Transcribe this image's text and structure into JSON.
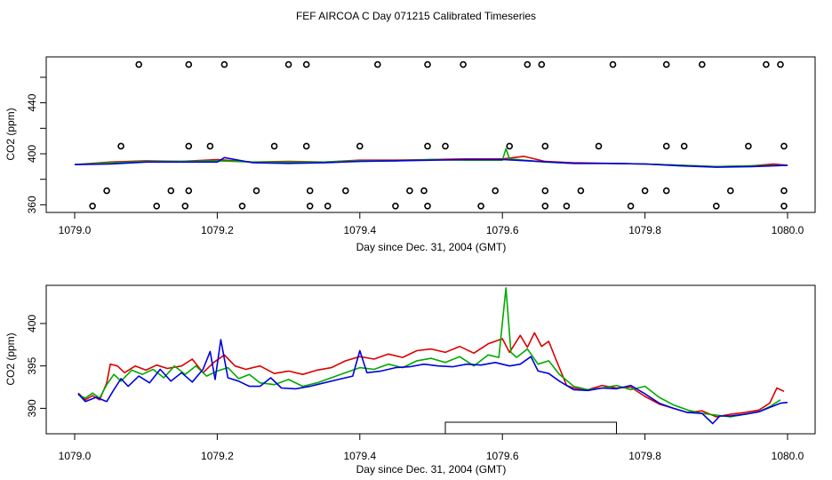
{
  "title": "FEF AIRCOA C  Day 071215  Calibrated Timeseries",
  "chart_data": [
    {
      "type": "line",
      "xlabel": "Day since Dec. 31, 2004 (GMT)",
      "ylabel": "CO2 (ppm)",
      "xlim": [
        1079.0,
        1080.0
      ],
      "ylim": [
        354,
        476
      ],
      "xticks": [
        1079.0,
        1079.2,
        1079.4,
        1079.6,
        1079.8,
        1080.0
      ],
      "xtick_labels": [
        "1079.0",
        "1079.2",
        "1079.4",
        "1079.6",
        "1079.8",
        "1080.0"
      ],
      "yticks": [
        360,
        380,
        400,
        420,
        440,
        460
      ],
      "ytick_labels": [
        "360",
        "",
        "400",
        "",
        "440",
        ""
      ],
      "series": [
        {
          "name": "red",
          "color": "#dd0000",
          "x": [
            1079.0,
            1079.05,
            1079.1,
            1079.15,
            1079.2,
            1079.25,
            1079.3,
            1079.35,
            1079.4,
            1079.45,
            1079.5,
            1079.55,
            1079.6,
            1079.63,
            1079.66,
            1079.7,
            1079.75,
            1079.8,
            1079.85,
            1079.9,
            1079.95,
            1079.98,
            1080.0
          ],
          "y": [
            391.5,
            393.5,
            394.5,
            394,
            395.5,
            393.5,
            394,
            393.5,
            395,
            395,
            395.5,
            396,
            396,
            398,
            394,
            393,
            392.5,
            392,
            391,
            390,
            390.5,
            392,
            391
          ]
        },
        {
          "name": "green",
          "color": "#00aa00",
          "x": [
            1079.0,
            1079.05,
            1079.1,
            1079.15,
            1079.2,
            1079.25,
            1079.3,
            1079.35,
            1079.4,
            1079.45,
            1079.5,
            1079.55,
            1079.6,
            1079.605,
            1079.61,
            1079.63,
            1079.66,
            1079.7,
            1079.75,
            1079.8,
            1079.85,
            1079.9,
            1079.95,
            1080.0
          ],
          "y": [
            391.5,
            393,
            394,
            394,
            394.5,
            393.5,
            393.5,
            393.5,
            394.5,
            394.5,
            395.5,
            395,
            395,
            404,
            396,
            395,
            393.5,
            392.5,
            392.5,
            392,
            391,
            390,
            390.5,
            391
          ]
        },
        {
          "name": "blue",
          "color": "#0000dd",
          "x": [
            1079.0,
            1079.05,
            1079.1,
            1079.15,
            1079.2,
            1079.21,
            1079.25,
            1079.3,
            1079.35,
            1079.4,
            1079.45,
            1079.5,
            1079.55,
            1079.6,
            1079.65,
            1079.7,
            1079.75,
            1079.8,
            1079.85,
            1079.9,
            1079.95,
            1080.0
          ],
          "y": [
            391.5,
            392,
            393.5,
            393.5,
            393.5,
            397,
            393,
            392.5,
            393,
            394,
            394.5,
            395,
            395.5,
            395.5,
            394,
            392.5,
            392.5,
            392,
            390.5,
            389.5,
            390,
            391
          ]
        }
      ],
      "flag_markers": {
        "style": "open-circle",
        "rows": [
          {
            "y": 470,
            "x": [
              1079.09,
              1079.16,
              1079.21,
              1079.3,
              1079.325,
              1079.425,
              1079.495,
              1079.545,
              1079.635,
              1079.655,
              1079.755,
              1079.83,
              1079.88,
              1079.97,
              1079.99
            ]
          },
          {
            "y": 406,
            "x": [
              1079.065,
              1079.16,
              1079.19,
              1079.28,
              1079.325,
              1079.4,
              1079.495,
              1079.52,
              1079.61,
              1079.66,
              1079.735,
              1079.83,
              1079.855,
              1079.945,
              1079.995
            ]
          },
          {
            "y": 371,
            "x": [
              1079.045,
              1079.135,
              1079.16,
              1079.255,
              1079.33,
              1079.38,
              1079.47,
              1079.49,
              1079.59,
              1079.66,
              1079.71,
              1079.8,
              1079.83,
              1079.92,
              1079.995
            ]
          },
          {
            "y": 359,
            "x": [
              1079.025,
              1079.115,
              1079.155,
              1079.235,
              1079.33,
              1079.355,
              1079.45,
              1079.495,
              1079.57,
              1079.66,
              1079.69,
              1079.78,
              1079.9,
              1079.995
            ]
          }
        ]
      }
    },
    {
      "type": "line",
      "xlabel": "Day since Dec. 31, 2004 (GMT)",
      "ylabel": "CO2 (ppm)",
      "xlim": [
        1079.0,
        1080.0
      ],
      "ylim": [
        387.0,
        404.5
      ],
      "xticks": [
        1079.0,
        1079.2,
        1079.4,
        1079.6,
        1079.8,
        1080.0
      ],
      "xtick_labels": [
        "1079.0",
        "1079.2",
        "1079.4",
        "1079.6",
        "1079.8",
        "1080.0"
      ],
      "yticks": [
        390,
        395,
        400
      ],
      "ytick_labels": [
        "390",
        "395",
        "400"
      ],
      "legend_box": {
        "x_range": [
          1079.52,
          1079.76
        ]
      },
      "series": [
        {
          "name": "red",
          "color": "#dd0000",
          "x": [
            1079.005,
            1079.015,
            1079.025,
            1079.035,
            1079.045,
            1079.05,
            1079.06,
            1079.07,
            1079.085,
            1079.1,
            1079.115,
            1079.13,
            1079.15,
            1079.165,
            1079.18,
            1079.195,
            1079.21,
            1079.225,
            1079.24,
            1079.26,
            1079.28,
            1079.3,
            1079.32,
            1079.34,
            1079.36,
            1079.38,
            1079.4,
            1079.42,
            1079.44,
            1079.46,
            1079.48,
            1079.5,
            1079.52,
            1079.54,
            1079.56,
            1079.58,
            1079.6,
            1079.61,
            1079.625,
            1079.635,
            1079.645,
            1079.655,
            1079.665,
            1079.675,
            1079.69,
            1079.7,
            1079.72,
            1079.74,
            1079.76,
            1079.78,
            1079.8,
            1079.82,
            1079.84,
            1079.86,
            1079.88,
            1079.9,
            1079.92,
            1079.94,
            1079.96,
            1079.975,
            1079.985,
            1079.995
          ],
          "y": [
            391.8,
            391.0,
            391.5,
            391.0,
            393.0,
            395.2,
            395.0,
            394.2,
            395.0,
            394.5,
            395.1,
            394.7,
            395.0,
            395.8,
            394.2,
            395.4,
            396.3,
            395.0,
            394.6,
            395.0,
            394.1,
            394.4,
            394.0,
            394.5,
            394.8,
            395.6,
            396.1,
            395.8,
            396.4,
            396.0,
            396.8,
            397.0,
            396.6,
            397.3,
            396.5,
            397.6,
            398.2,
            396.6,
            398.6,
            397.2,
            398.9,
            397.3,
            397.9,
            395.8,
            392.7,
            392.4,
            392.2,
            392.7,
            392.4,
            392.5,
            391.4,
            390.5,
            390.0,
            389.5,
            389.7,
            389.0,
            389.3,
            389.5,
            389.8,
            390.6,
            392.4,
            392.0
          ]
        },
        {
          "name": "green",
          "color": "#00aa00",
          "x": [
            1079.005,
            1079.015,
            1079.025,
            1079.035,
            1079.045,
            1079.055,
            1079.065,
            1079.08,
            1079.095,
            1079.11,
            1079.125,
            1079.14,
            1079.155,
            1079.17,
            1079.185,
            1079.2,
            1079.215,
            1079.23,
            1079.245,
            1079.26,
            1079.28,
            1079.3,
            1079.32,
            1079.34,
            1079.36,
            1079.38,
            1079.4,
            1079.42,
            1079.44,
            1079.46,
            1079.48,
            1079.5,
            1079.52,
            1079.54,
            1079.56,
            1079.58,
            1079.595,
            1079.605,
            1079.612,
            1079.62,
            1079.635,
            1079.65,
            1079.665,
            1079.68,
            1079.7,
            1079.72,
            1079.74,
            1079.76,
            1079.78,
            1079.8,
            1079.82,
            1079.84,
            1079.86,
            1079.88,
            1079.9,
            1079.92,
            1079.94,
            1079.96,
            1079.975,
            1079.99
          ],
          "y": [
            391.6,
            391.2,
            391.8,
            391.2,
            392.8,
            394.0,
            393.2,
            394.5,
            394.0,
            394.6,
            393.6,
            395.0,
            394.0,
            395.0,
            393.8,
            394.4,
            394.8,
            393.5,
            394.0,
            393.0,
            392.8,
            393.4,
            392.6,
            393.0,
            393.6,
            394.2,
            394.8,
            394.6,
            395.2,
            394.8,
            395.6,
            395.9,
            395.4,
            396.1,
            395.0,
            396.3,
            396.0,
            404.2,
            396.6,
            396.0,
            397.0,
            395.2,
            395.6,
            394.0,
            392.6,
            392.2,
            392.4,
            392.7,
            392.2,
            392.6,
            391.3,
            390.4,
            389.8,
            389.4,
            389.2,
            389.0,
            389.3,
            389.6,
            390.2,
            391.0
          ]
        },
        {
          "name": "blue",
          "color": "#0000dd",
          "x": [
            1079.005,
            1079.015,
            1079.03,
            1079.045,
            1079.055,
            1079.065,
            1079.075,
            1079.09,
            1079.105,
            1079.12,
            1079.135,
            1079.15,
            1079.165,
            1079.18,
            1079.19,
            1079.197,
            1079.205,
            1079.215,
            1079.23,
            1079.245,
            1079.26,
            1079.275,
            1079.29,
            1079.31,
            1079.33,
            1079.35,
            1079.37,
            1079.39,
            1079.4,
            1079.41,
            1079.43,
            1079.45,
            1079.47,
            1079.49,
            1079.51,
            1079.53,
            1079.55,
            1079.57,
            1079.59,
            1079.61,
            1079.625,
            1079.64,
            1079.65,
            1079.665,
            1079.68,
            1079.7,
            1079.72,
            1079.74,
            1079.76,
            1079.78,
            1079.8,
            1079.82,
            1079.84,
            1079.86,
            1079.88,
            1079.895,
            1079.905,
            1079.92,
            1079.94,
            1079.96,
            1079.975,
            1079.99,
            1080.0
          ],
          "y": [
            391.7,
            390.8,
            391.3,
            390.8,
            392.2,
            393.5,
            392.6,
            393.8,
            393.0,
            394.6,
            393.2,
            394.2,
            393.1,
            394.6,
            396.7,
            393.4,
            398.1,
            393.6,
            393.2,
            392.6,
            392.6,
            393.6,
            392.4,
            392.3,
            392.6,
            393.0,
            393.4,
            393.8,
            396.8,
            394.2,
            394.4,
            394.8,
            394.9,
            395.2,
            395.0,
            394.9,
            395.2,
            395.1,
            395.4,
            395.0,
            395.2,
            396.1,
            394.4,
            394.1,
            393.2,
            392.2,
            392.1,
            392.4,
            392.3,
            392.7,
            391.7,
            390.6,
            390.0,
            389.5,
            389.4,
            388.2,
            389.1,
            389.1,
            389.3,
            389.6,
            390.1,
            390.6,
            390.7
          ]
        }
      ]
    }
  ]
}
